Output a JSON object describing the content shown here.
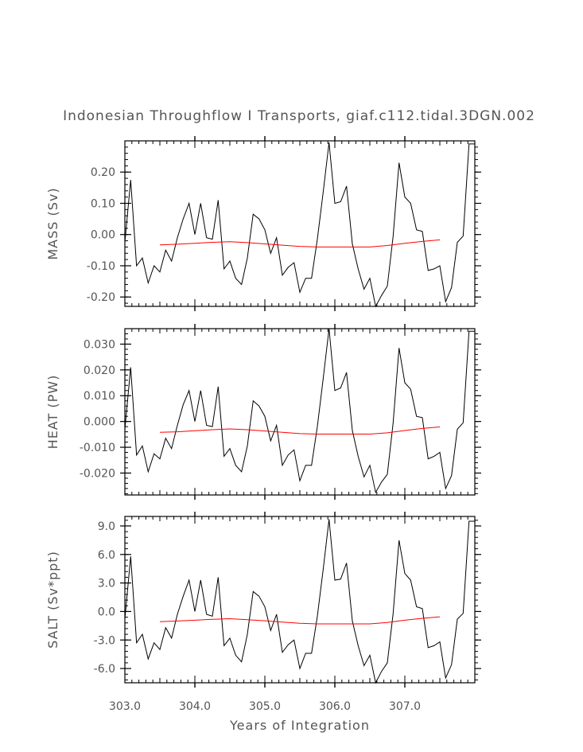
{
  "title": "Indonesian Throughflow I Transports, giaf.c112.tidal.3DGN.002",
  "xlabel": "Years of Integration",
  "x_tick_labels": [
    "303.0",
    "304.0",
    "305.0",
    "306.0",
    "307.0"
  ],
  "x_ticks": [
    303.0,
    304.0,
    305.0,
    306.0,
    307.0
  ],
  "colors": {
    "raw": "#000000",
    "smooth": "#ff0000",
    "axes": "#000000",
    "text": "#555555"
  },
  "chart_data": [
    {
      "type": "line",
      "ylabel": "MASS (Sv)",
      "xlim": [
        303.0,
        308.0
      ],
      "ylim": [
        -0.23,
        0.3
      ],
      "y_ticks": [
        0.2,
        0.1,
        0.0,
        -0.1,
        -0.2
      ],
      "y_tick_labels": [
        "0.20",
        "0.10",
        "0.00",
        "-0.10",
        "-0.20"
      ],
      "series": [
        {
          "name": "raw",
          "x": [
            303.0,
            303.083,
            303.167,
            303.25,
            303.333,
            303.417,
            303.5,
            303.583,
            303.667,
            303.75,
            303.833,
            303.917,
            304.0,
            304.083,
            304.167,
            304.25,
            304.333,
            304.417,
            304.5,
            304.583,
            304.667,
            304.75,
            304.833,
            304.917,
            305.0,
            305.083,
            305.167,
            305.25,
            305.333,
            305.417,
            305.5,
            305.583,
            305.667,
            305.75,
            305.833,
            305.917,
            306.0,
            306.083,
            306.167,
            306.25,
            306.333,
            306.417,
            306.5,
            306.583,
            306.667,
            306.75,
            306.833,
            306.917,
            307.0,
            307.083,
            307.167,
            307.25,
            307.333,
            307.417,
            307.5,
            307.583,
            307.667,
            307.75,
            307.833,
            307.917,
            308.0
          ],
          "values": [
            -0.025,
            0.175,
            -0.1,
            -0.075,
            -0.155,
            -0.1,
            -0.12,
            -0.05,
            -0.085,
            -0.01,
            0.05,
            0.1,
            0.0,
            0.1,
            -0.01,
            -0.015,
            0.11,
            -0.11,
            -0.085,
            -0.14,
            -0.16,
            -0.075,
            0.065,
            0.05,
            0.015,
            -0.06,
            -0.01,
            -0.13,
            -0.105,
            -0.09,
            -0.185,
            -0.14,
            -0.14,
            -0.015,
            0.135,
            0.295,
            0.1,
            0.105,
            0.155,
            -0.03,
            -0.11,
            -0.175,
            -0.14,
            -0.23,
            -0.195,
            -0.165,
            -0.005,
            0.23,
            0.12,
            0.1,
            0.015,
            0.01,
            -0.115,
            -0.11,
            -0.1,
            -0.215,
            -0.17,
            -0.025,
            -0.005,
            0.29,
            0.29
          ]
        },
        {
          "name": "smooth",
          "x": [
            303.5,
            303.75,
            304.0,
            304.25,
            304.5,
            304.75,
            305.0,
            305.25,
            305.5,
            305.75,
            306.0,
            306.25,
            306.5,
            306.75,
            307.0,
            307.25,
            307.5
          ],
          "values": [
            -0.033,
            -0.031,
            -0.028,
            -0.025,
            -0.023,
            -0.026,
            -0.03,
            -0.034,
            -0.038,
            -0.04,
            -0.04,
            -0.04,
            -0.04,
            -0.035,
            -0.028,
            -0.022,
            -0.017
          ]
        }
      ]
    },
    {
      "type": "line",
      "ylabel": "HEAT (PW)",
      "xlim": [
        303.0,
        308.0
      ],
      "ylim": [
        -0.0285,
        0.036
      ],
      "y_ticks": [
        0.03,
        0.02,
        0.01,
        0.0,
        -0.01,
        -0.02
      ],
      "y_tick_labels": [
        "0.030",
        "0.020",
        "0.010",
        "0.000",
        "-0.010",
        "-0.020"
      ],
      "series": [
        {
          "name": "raw",
          "x": [
            303.0,
            303.083,
            303.167,
            303.25,
            303.333,
            303.417,
            303.5,
            303.583,
            303.667,
            303.75,
            303.833,
            303.917,
            304.0,
            304.083,
            304.167,
            304.25,
            304.333,
            304.417,
            304.5,
            304.583,
            304.667,
            304.75,
            304.833,
            304.917,
            305.0,
            305.083,
            305.167,
            305.25,
            305.333,
            305.417,
            305.5,
            305.583,
            305.667,
            305.75,
            305.833,
            305.917,
            306.0,
            306.083,
            306.167,
            306.25,
            306.333,
            306.417,
            306.5,
            306.583,
            306.667,
            306.75,
            306.833,
            306.917,
            307.0,
            307.083,
            307.167,
            307.25,
            307.333,
            307.417,
            307.5,
            307.583,
            307.667,
            307.75,
            307.833,
            307.917,
            308.0
          ],
          "values": [
            -0.003,
            0.021,
            -0.013,
            -0.0095,
            -0.0195,
            -0.0125,
            -0.0145,
            -0.0065,
            -0.0105,
            -0.0015,
            0.0065,
            0.012,
            0.0,
            0.012,
            -0.0015,
            -0.002,
            0.0135,
            -0.0135,
            -0.0105,
            -0.017,
            -0.0195,
            -0.0095,
            0.008,
            0.006,
            0.002,
            -0.0075,
            -0.0015,
            -0.017,
            -0.013,
            -0.011,
            -0.023,
            -0.017,
            -0.017,
            -0.002,
            0.0165,
            0.036,
            0.012,
            0.013,
            0.019,
            -0.0035,
            -0.0135,
            -0.0215,
            -0.017,
            -0.0275,
            -0.0235,
            -0.0205,
            -0.0005,
            0.0285,
            0.015,
            0.0125,
            0.002,
            0.0015,
            -0.0145,
            -0.0135,
            -0.012,
            -0.026,
            -0.021,
            -0.003,
            -0.0005,
            0.035,
            0.035
          ]
        },
        {
          "name": "smooth",
          "x": [
            303.5,
            303.75,
            304.0,
            304.25,
            304.5,
            304.75,
            305.0,
            305.25,
            305.5,
            305.75,
            306.0,
            306.25,
            306.5,
            306.75,
            307.0,
            307.25,
            307.5
          ],
          "values": [
            -0.0042,
            -0.004,
            -0.0036,
            -0.0032,
            -0.0029,
            -0.0032,
            -0.0037,
            -0.0042,
            -0.0047,
            -0.0049,
            -0.0049,
            -0.0049,
            -0.0049,
            -0.0044,
            -0.0035,
            -0.0027,
            -0.0021
          ]
        }
      ]
    },
    {
      "type": "line",
      "ylabel": "SALT (Sv*ppt)",
      "xlim": [
        303.0,
        308.0
      ],
      "ylim": [
        -7.5,
        10.0
      ],
      "y_ticks": [
        9.0,
        6.0,
        3.0,
        0.0,
        -3.0,
        -6.0
      ],
      "y_tick_labels": [
        "9.0",
        "6.0",
        "3.0",
        "0.0",
        "-3.0",
        "-6.0"
      ],
      "series": [
        {
          "name": "raw",
          "x": [
            303.0,
            303.083,
            303.167,
            303.25,
            303.333,
            303.417,
            303.5,
            303.583,
            303.667,
            303.75,
            303.833,
            303.917,
            304.0,
            304.083,
            304.167,
            304.25,
            304.333,
            304.417,
            304.5,
            304.583,
            304.667,
            304.75,
            304.833,
            304.917,
            305.0,
            305.083,
            305.167,
            305.25,
            305.333,
            305.417,
            305.5,
            305.583,
            305.667,
            305.75,
            305.833,
            305.917,
            306.0,
            306.083,
            306.167,
            306.25,
            306.333,
            306.417,
            306.5,
            306.583,
            306.667,
            306.75,
            306.833,
            306.917,
            307.0,
            307.083,
            307.167,
            307.25,
            307.333,
            307.417,
            307.5,
            307.583,
            307.667,
            307.75,
            307.833,
            307.917,
            308.0
          ],
          "values": [
            -0.8,
            5.8,
            -3.3,
            -2.4,
            -5.0,
            -3.3,
            -4.0,
            -1.7,
            -2.8,
            -0.3,
            1.6,
            3.3,
            0.0,
            3.3,
            -0.3,
            -0.5,
            3.6,
            -3.6,
            -2.8,
            -4.6,
            -5.3,
            -2.4,
            2.1,
            1.6,
            0.5,
            -2.0,
            -0.3,
            -4.3,
            -3.5,
            -3.0,
            -6.0,
            -4.4,
            -4.4,
            -0.5,
            4.4,
            9.7,
            3.3,
            3.4,
            5.1,
            -1.0,
            -3.6,
            -5.7,
            -4.6,
            -7.5,
            -6.3,
            -5.4,
            -0.2,
            7.5,
            4.0,
            3.3,
            0.5,
            0.3,
            -3.8,
            -3.6,
            -3.2,
            -7.0,
            -5.6,
            -0.8,
            -0.2,
            9.5,
            9.5
          ]
        },
        {
          "name": "smooth",
          "x": [
            303.5,
            303.75,
            304.0,
            304.25,
            304.5,
            304.75,
            305.0,
            305.25,
            305.5,
            305.75,
            306.0,
            306.25,
            306.5,
            306.75,
            307.0,
            307.25,
            307.5
          ],
          "values": [
            -1.08,
            -1.0,
            -0.92,
            -0.82,
            -0.76,
            -0.86,
            -0.98,
            -1.12,
            -1.24,
            -1.3,
            -1.3,
            -1.3,
            -1.3,
            -1.15,
            -0.92,
            -0.72,
            -0.56
          ]
        }
      ]
    }
  ]
}
